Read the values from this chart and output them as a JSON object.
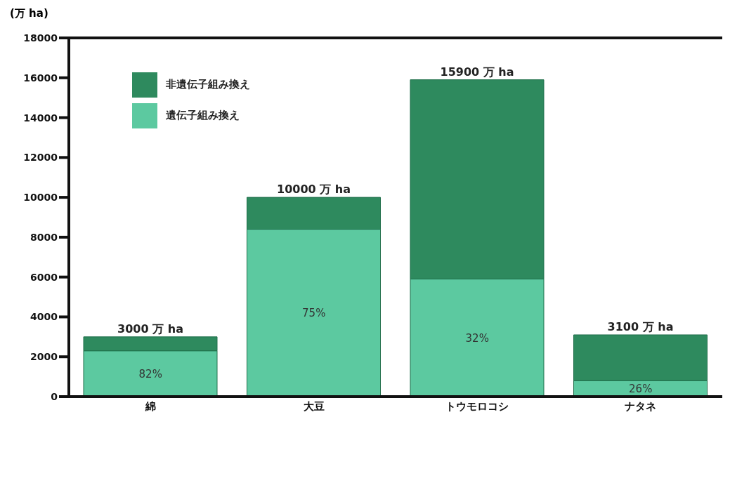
{
  "chart_data": {
    "type": "bar",
    "stacked": true,
    "ylabel": "(万 ha)",
    "categories": [
      "綿",
      "大豆",
      "トウモロコシ",
      "ナタネ"
    ],
    "series": [
      {
        "name": "遺伝子組み換え",
        "color": "#5cc9a0",
        "values": [
          2300,
          8400,
          5900,
          800
        ]
      },
      {
        "name": "非遺伝子組み換え",
        "color": "#2e8a5e",
        "values": [
          700,
          1600,
          10000,
          2300
        ]
      }
    ],
    "totals": [
      "3000 万 ha",
      "10000 万 ha",
      "15900 万 ha",
      "3100 万 ha"
    ],
    "annotations": [
      "82%",
      "75%",
      "32%",
      "26%"
    ],
    "ylim": [
      0,
      18000
    ],
    "yticks": [
      0,
      2000,
      4000,
      6000,
      8000,
      10000,
      12000,
      14000,
      16000,
      18000
    ],
    "grid": false,
    "legend": "top left"
  }
}
